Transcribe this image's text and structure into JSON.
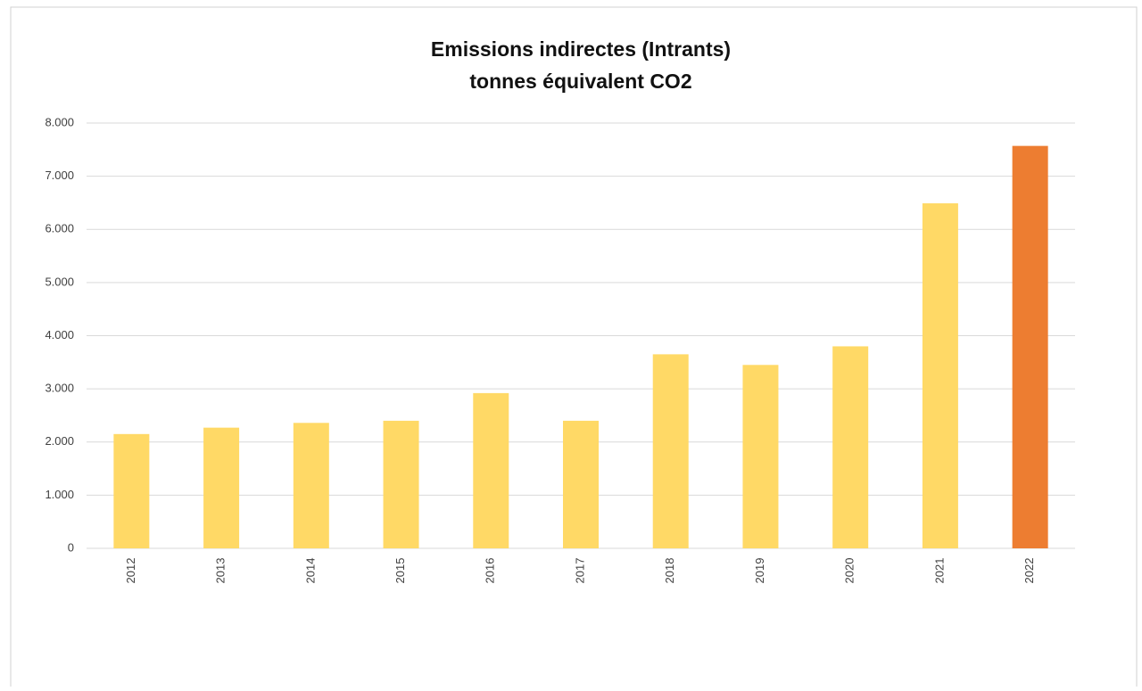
{
  "chart_data": {
    "type": "bar",
    "title": "Emissions indirectes (Intrants)",
    "subtitle": "tonnes équivalent CO2",
    "categories": [
      "2012",
      "2013",
      "2014",
      "2015",
      "2016",
      "2017",
      "2018",
      "2019",
      "2020",
      "2021",
      "2022"
    ],
    "values": [
      2150,
      2270,
      2360,
      2400,
      2920,
      2400,
      3650,
      3450,
      3800,
      6490,
      7570
    ],
    "colors": [
      "#FFD966",
      "#FFD966",
      "#FFD966",
      "#FFD966",
      "#FFD966",
      "#FFD966",
      "#FFD966",
      "#FFD966",
      "#FFD966",
      "#FFD966",
      "#ED7D31"
    ],
    "ylim": [
      0,
      8000
    ],
    "yticks": [
      0,
      {
        "value": 1000,
        "label": "1.000"
      },
      {
        "value": 2000,
        "label": "2.000"
      },
      {
        "value": 3000,
        "label": "3.000"
      },
      {
        "value": 4000,
        "label": "4.000"
      },
      {
        "value": 5000,
        "label": "5.000"
      },
      {
        "value": 6000,
        "label": "6.000"
      },
      {
        "value": 7000,
        "label": "7.000"
      },
      {
        "value": 8000,
        "label": "8.000"
      }
    ],
    "grid": true
  }
}
